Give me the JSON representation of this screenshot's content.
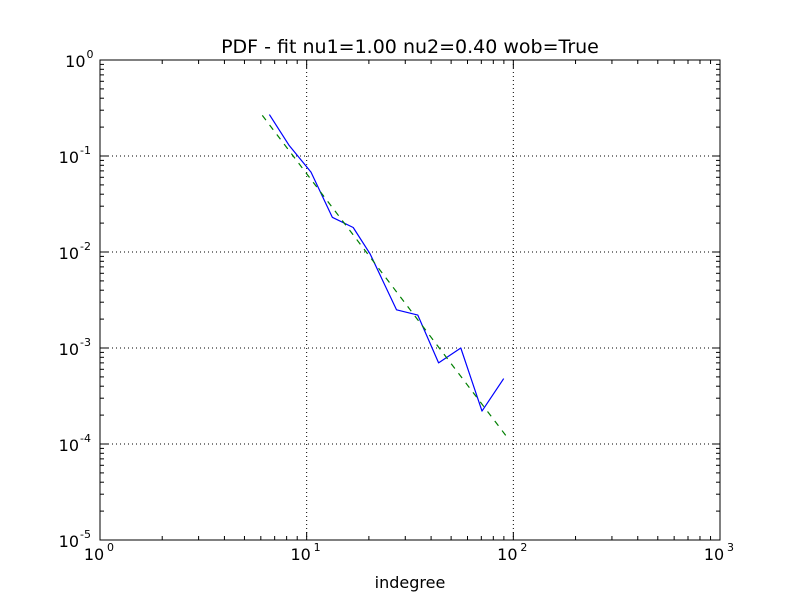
{
  "chart_data": {
    "type": "line",
    "title": "PDF - fit nu1=1.00 nu2=0.40 wob=True",
    "xlabel": "indegree",
    "ylabel": "",
    "x_scale": "log",
    "y_scale": "log",
    "xlim": [
      1,
      1000
    ],
    "ylim": [
      1e-05,
      1
    ],
    "grid": true,
    "x_ticks": [
      {
        "base": "10",
        "exp": "0"
      },
      {
        "base": "10",
        "exp": "1"
      },
      {
        "base": "10",
        "exp": "2"
      },
      {
        "base": "10",
        "exp": "3"
      }
    ],
    "y_ticks": [
      {
        "base": "10",
        "exp": "0"
      },
      {
        "base": "10",
        "exp": "-1"
      },
      {
        "base": "10",
        "exp": "-2"
      },
      {
        "base": "10",
        "exp": "-3"
      },
      {
        "base": "10",
        "exp": "-4"
      },
      {
        "base": "10",
        "exp": "-5"
      }
    ],
    "series": [
      {
        "style": "solid",
        "color": "#0000ff",
        "x": [
          6.6,
          8.2,
          10.5,
          13.3,
          16.8,
          20.3,
          27.2,
          34.5,
          43.5,
          55.7,
          70.5,
          89.8
        ],
        "y": [
          0.27,
          0.13,
          0.068,
          0.023,
          0.018,
          0.0095,
          0.0025,
          0.0022,
          0.0007,
          0.001,
          0.00022,
          0.00048
        ]
      },
      {
        "style": "dashed",
        "color": "#007f00",
        "x": [
          6.1,
          95.0
        ],
        "y": [
          0.265,
          0.000112
        ]
      }
    ]
  }
}
